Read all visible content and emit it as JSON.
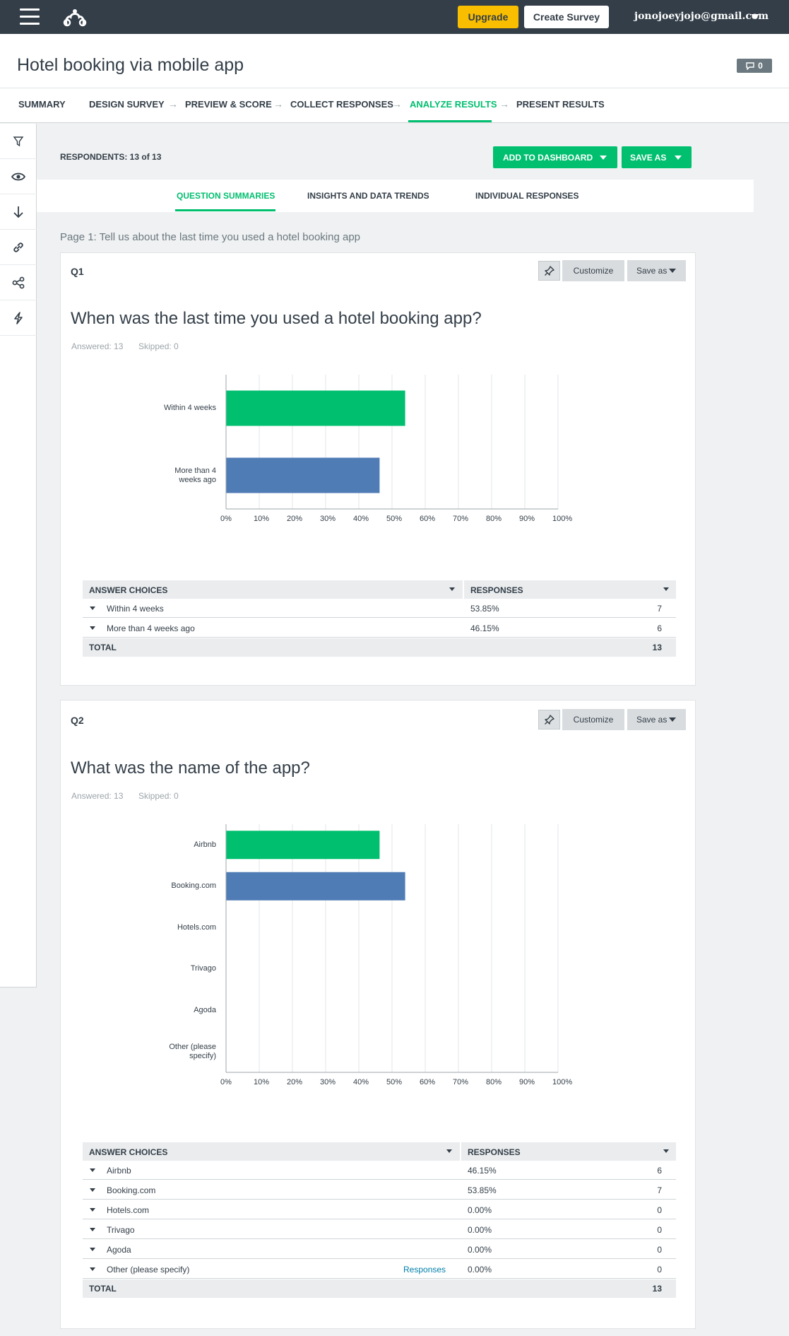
{
  "topbar": {
    "upgrade_label": "Upgrade",
    "create_label": "Create Survey",
    "user_email": "jonojoeyjojo@gmail.com"
  },
  "title": "Hotel booking via mobile app",
  "comment_count": "0",
  "steps": [
    {
      "label": "SUMMARY",
      "active": false
    },
    {
      "label": "DESIGN SURVEY",
      "active": false
    },
    {
      "label": "PREVIEW & SCORE",
      "active": false
    },
    {
      "label": "COLLECT RESPONSES",
      "active": false
    },
    {
      "label": "ANALYZE RESULTS",
      "active": true
    },
    {
      "label": "PRESENT RESULTS",
      "active": false
    }
  ],
  "respondents_label": "RESPONDENTS: 13 of 13",
  "add_dashboard_label": "ADD TO DASHBOARD",
  "save_as_label": "SAVE AS",
  "subtabs": [
    {
      "label": "QUESTION SUMMARIES",
      "active": true
    },
    {
      "label": "INSIGHTS AND DATA TRENDS",
      "active": false
    },
    {
      "label": "INDIVIDUAL RESPONSES",
      "active": false
    }
  ],
  "page_label": "Page 1: Tell us about the last time you used a hotel booking app",
  "card_buttons": {
    "customize": "Customize",
    "save_as": "Save as"
  },
  "table_headers": {
    "choices": "ANSWER CHOICES",
    "responses": "RESPONSES",
    "total": "TOTAL"
  },
  "colors": {
    "green": "#00bf6f",
    "blue": "#507cb6"
  },
  "questions": [
    {
      "num": "Q1",
      "text": "When was the last time you used a hotel booking app?",
      "answered": "Answered: 13",
      "skipped": "Skipped: 0",
      "rows": [
        {
          "choice": "Within 4 weeks",
          "pct": "53.85%",
          "count": "7"
        },
        {
          "choice": "More than 4 weeks ago",
          "pct": "46.15%",
          "count": "6"
        }
      ],
      "total": "13"
    },
    {
      "num": "Q2",
      "text": "What was the name of the app?",
      "answered": "Answered: 13",
      "skipped": "Skipped: 0",
      "rows": [
        {
          "choice": "Airbnb",
          "pct": "46.15%",
          "count": "6"
        },
        {
          "choice": "Booking.com",
          "pct": "53.85%",
          "count": "7"
        },
        {
          "choice": "Hotels.com",
          "pct": "0.00%",
          "count": "0"
        },
        {
          "choice": "Trivago",
          "pct": "0.00%",
          "count": "0"
        },
        {
          "choice": "Agoda",
          "pct": "0.00%",
          "count": "0"
        },
        {
          "choice": "Other (please specify)",
          "pct": "0.00%",
          "count": "0",
          "link": "Responses"
        }
      ],
      "total": "13"
    }
  ],
  "chart_data": [
    {
      "type": "bar",
      "orientation": "horizontal",
      "categories": [
        "Within 4 weeks",
        "More than 4 weeks ago"
      ],
      "category_labels": [
        [
          "Within 4 weeks"
        ],
        [
          "More than 4",
          "weeks ago"
        ]
      ],
      "values": [
        53.85,
        46.15
      ],
      "colors": [
        "#00bf6f",
        "#507cb6"
      ],
      "xlim": [
        0,
        100
      ],
      "xticks": [
        "0%",
        "10%",
        "20%",
        "30%",
        "40%",
        "50%",
        "60%",
        "70%",
        "80%",
        "90%",
        "100%"
      ],
      "grid": true
    },
    {
      "type": "bar",
      "orientation": "horizontal",
      "categories": [
        "Airbnb",
        "Booking.com",
        "Hotels.com",
        "Trivago",
        "Agoda",
        "Other (please specify)"
      ],
      "category_labels": [
        [
          "Airbnb"
        ],
        [
          "Booking.com"
        ],
        [
          "Hotels.com"
        ],
        [
          "Trivago"
        ],
        [
          "Agoda"
        ],
        [
          "Other (please",
          "specify)"
        ]
      ],
      "values": [
        46.15,
        53.85,
        0,
        0,
        0,
        0
      ],
      "colors": [
        "#00bf6f",
        "#507cb6",
        "#00bf6f",
        "#507cb6",
        "#00bf6f",
        "#507cb6"
      ],
      "xlim": [
        0,
        100
      ],
      "xticks": [
        "0%",
        "10%",
        "20%",
        "30%",
        "40%",
        "50%",
        "60%",
        "70%",
        "80%",
        "90%",
        "100%"
      ],
      "grid": true
    }
  ]
}
